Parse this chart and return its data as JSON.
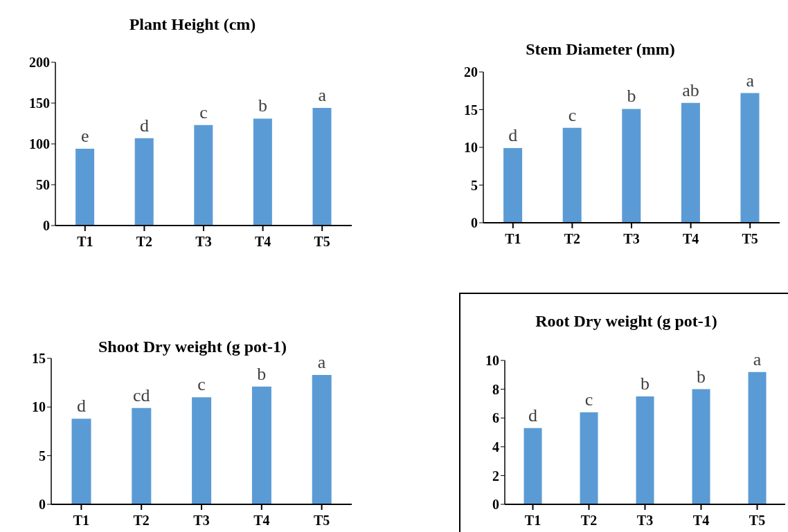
{
  "chart_data": [
    {
      "type": "bar",
      "title": "Plant Height (cm)",
      "categories": [
        "T1",
        "T2",
        "T3",
        "T4",
        "T5"
      ],
      "values": [
        94,
        107,
        123,
        131,
        144
      ],
      "color": "#5b9bd5",
      "ylim": [
        0,
        200
      ],
      "yticks": [
        0,
        50,
        100,
        150,
        200
      ],
      "grid": false,
      "annotations": [
        {
          "text": "e",
          "x": "T1",
          "y": 94
        },
        {
          "text": "d",
          "x": "T2",
          "y": 107
        },
        {
          "text": "c",
          "x": "T3",
          "y": 123
        },
        {
          "text": "b",
          "x": "T4",
          "y": 131
        },
        {
          "text": "a",
          "x": "T5",
          "y": 144
        }
      ]
    },
    {
      "type": "bar",
      "title": "Stem Diameter (mm)",
      "categories": [
        "T1",
        "T2",
        "T3",
        "T4",
        "T5"
      ],
      "values": [
        9.9,
        12.6,
        15.1,
        15.9,
        17.2
      ],
      "color": "#5b9bd5",
      "ylim": [
        0,
        20
      ],
      "yticks": [
        0,
        5,
        10,
        15,
        20
      ],
      "grid": false,
      "annotations": [
        {
          "text": "d",
          "x": "T1",
          "y": 9.9
        },
        {
          "text": "c",
          "x": "T2",
          "y": 12.6
        },
        {
          "text": "b",
          "x": "T3",
          "y": 15.1
        },
        {
          "text": "ab",
          "x": "T4",
          "y": 15.9
        },
        {
          "text": "a",
          "x": "T5",
          "y": 17.2
        }
      ]
    },
    {
      "type": "bar",
      "title": "Shoot Dry weight (g pot-1)",
      "categories": [
        "T1",
        "T2",
        "T3",
        "T4",
        "T5"
      ],
      "values": [
        8.8,
        9.9,
        11.0,
        12.1,
        13.3
      ],
      "color": "#5b9bd5",
      "ylim": [
        0,
        15
      ],
      "yticks": [
        0,
        5,
        10,
        15
      ],
      "grid": false,
      "annotations": [
        {
          "text": "d",
          "x": "T1",
          "y": 8.8
        },
        {
          "text": "cd",
          "x": "T2",
          "y": 9.9
        },
        {
          "text": "c",
          "x": "T3",
          "y": 11.0
        },
        {
          "text": "b",
          "x": "T4",
          "y": 12.1
        },
        {
          "text": "a",
          "x": "T5",
          "y": 13.3
        }
      ]
    },
    {
      "type": "bar",
      "title": "Root Dry weight (g pot-1)",
      "categories": [
        "T1",
        "T2",
        "T3",
        "T4",
        "T5"
      ],
      "values": [
        5.3,
        6.4,
        7.5,
        8.0,
        9.2
      ],
      "color": "#5b9bd5",
      "ylim": [
        0,
        10
      ],
      "yticks": [
        0,
        2,
        4,
        6,
        8,
        10
      ],
      "grid": false,
      "annotations": [
        {
          "text": "d",
          "x": "T1",
          "y": 5.3
        },
        {
          "text": "c",
          "x": "T2",
          "y": 6.4
        },
        {
          "text": "b",
          "x": "T3",
          "y": 7.5
        },
        {
          "text": "b",
          "x": "T4",
          "y": 8.0
        },
        {
          "text": "a",
          "x": "T5",
          "y": 9.2
        }
      ]
    }
  ]
}
